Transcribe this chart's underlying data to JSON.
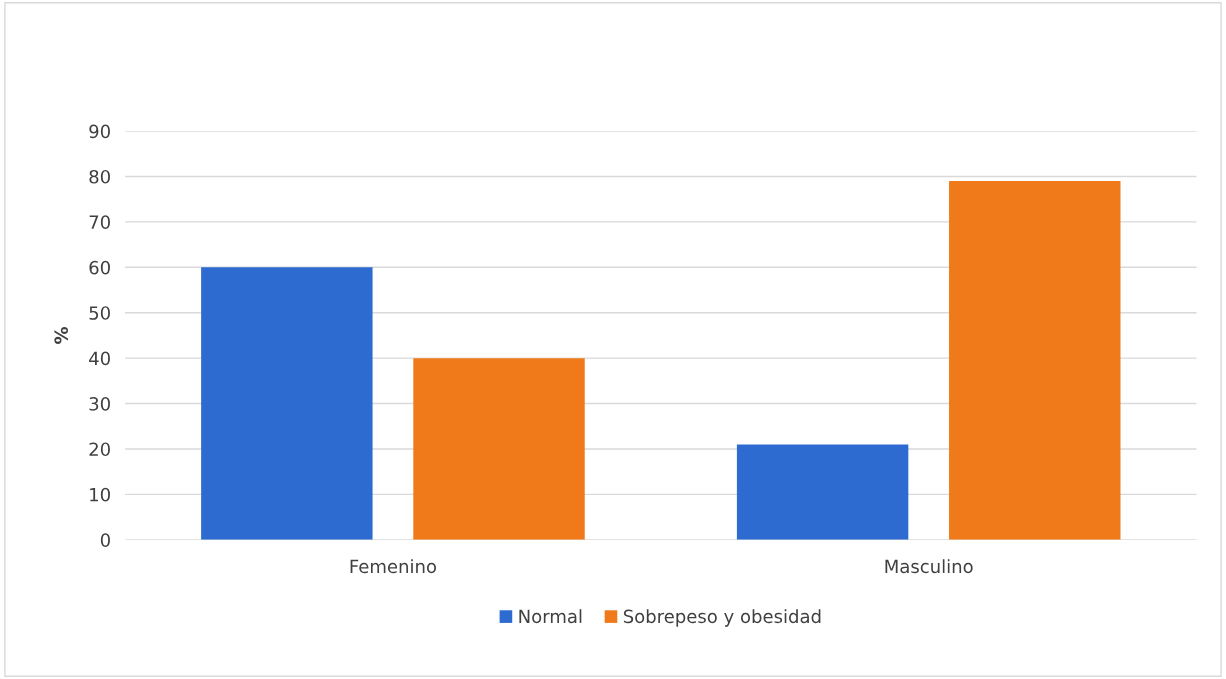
{
  "chart_data": {
    "type": "bar",
    "categories": [
      "Femenino",
      "Masculino"
    ],
    "ylabel": "%",
    "series": [
      {
        "name": "Normal",
        "color": "#2e6bd1",
        "values": [
          60,
          21
        ]
      },
      {
        "name": "Sobrepeso y obesidad",
        "color": "#f07a1a",
        "values": [
          40,
          79
        ]
      }
    ],
    "ylim": [
      0,
      90
    ],
    "yticks": [
      0,
      10,
      20,
      30,
      40,
      50,
      60,
      70,
      80,
      90
    ],
    "grid": "y",
    "legend": "bottom"
  }
}
